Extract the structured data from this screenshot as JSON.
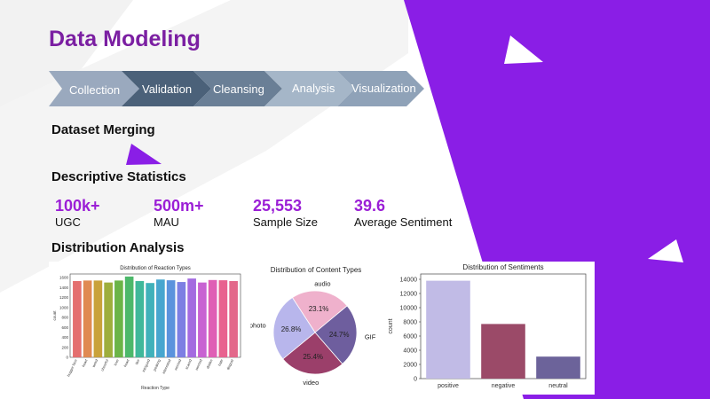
{
  "slide": {
    "title": "Data Modeling",
    "steps": [
      "Collection",
      "Validation",
      "Cleansing",
      "Analysis",
      "Visualization"
    ],
    "sections": {
      "merging": "Dataset Merging",
      "descriptive": "Descriptive Statistics",
      "distribution": "Distribution Analysis"
    },
    "stats": [
      {
        "value": "100k+",
        "label": "UGC"
      },
      {
        "value": "500m+",
        "label": "MAU"
      },
      {
        "value": "25,553",
        "label": "Sample Size"
      },
      {
        "value": "39.6",
        "label": "Average Sentiment"
      }
    ]
  },
  "colors": {
    "accent": "#8a1ee6",
    "title": "#7b1fa2"
  },
  "chart_data": [
    {
      "type": "bar",
      "title": "Distribution of Reaction Types",
      "xlabel": "Reaction Type",
      "ylabel": "count",
      "categories": [
        "hugger face",
        "heart",
        "weird",
        "cheerful",
        "love",
        "heart",
        "like",
        "intrigued",
        "peaking",
        "interested",
        "worried",
        "scared",
        "worried",
        "dislike",
        "hate",
        "disgust"
      ],
      "values": [
        1530,
        1540,
        1540,
        1500,
        1540,
        1620,
        1530,
        1490,
        1560,
        1545,
        1510,
        1580,
        1500,
        1550,
        1545,
        1530
      ],
      "ylim": [
        0,
        1600
      ],
      "yticks": [
        0,
        200,
        400,
        600,
        800,
        1000,
        1200,
        1400,
        1600
      ]
    },
    {
      "type": "pie",
      "title": "Distribution of Content Types",
      "labels": [
        "audio",
        "GIF",
        "video",
        "photo"
      ],
      "values": [
        23.1,
        24.7,
        25.4,
        26.8
      ],
      "value_labels": [
        "23.1%",
        "24.7%",
        "25.4%",
        "26.8%"
      ],
      "colors": [
        "#efb1cc",
        "#6e5e9e",
        "#9b3f6a",
        "#b8b6ec"
      ]
    },
    {
      "type": "bar",
      "title": "Distribution of Sentiments",
      "ylabel": "count",
      "categories": [
        "positive",
        "negative",
        "neutral"
      ],
      "values": [
        13800,
        7700,
        3100
      ],
      "ylim": [
        0,
        14000
      ],
      "yticks": [
        0,
        2000,
        4000,
        6000,
        8000,
        10000,
        12000,
        14000
      ],
      "colors": [
        "#c1bbe6",
        "#9b4a68",
        "#6c639a"
      ]
    }
  ]
}
